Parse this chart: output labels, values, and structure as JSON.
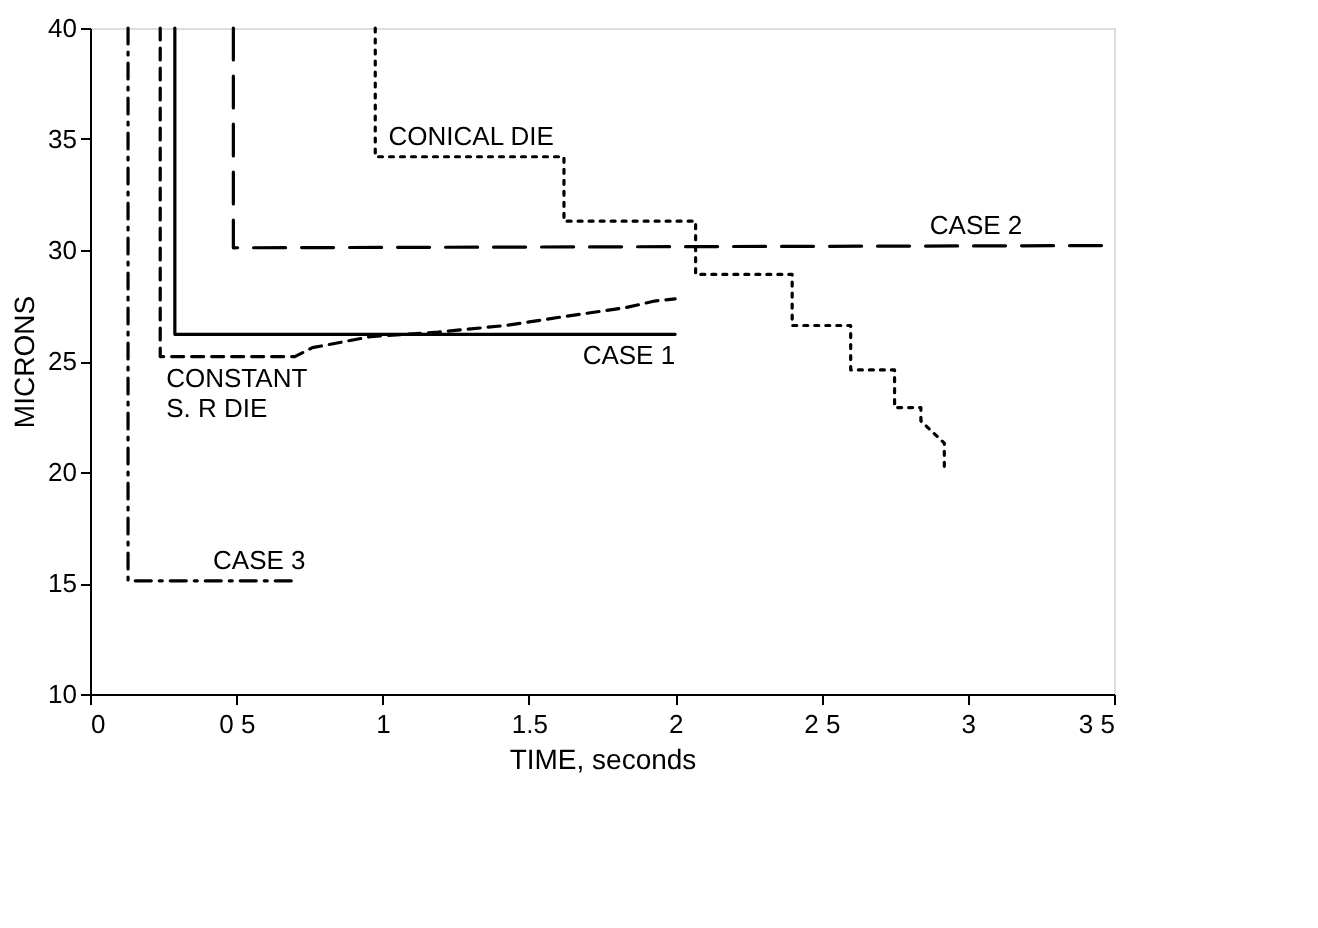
{
  "chart_data": {
    "type": "line",
    "xlabel": "TIME, seconds",
    "ylabel": "MICRONS",
    "xlim": [
      0,
      3.5
    ],
    "ylim": [
      10,
      40
    ],
    "xticks": [
      0,
      {
        "value": 0.5,
        "label": "0 5"
      },
      1,
      1.5,
      2,
      {
        "value": 2.5,
        "label": "2 5"
      },
      3,
      {
        "value": 3.5,
        "label": "3 5"
      }
    ],
    "yticks": [
      10,
      15,
      20,
      25,
      30,
      35,
      40
    ],
    "grid": false,
    "series": [
      {
        "color": "#000000",
        "line_style": "solid",
        "x": [
          0.29,
          0.29,
          2.0
        ],
        "values": [
          40,
          26.2,
          26.2
        ]
      },
      {
        "color": "#000000",
        "line_style": "longdash",
        "x": [
          0.49,
          0.49,
          3.5
        ],
        "values": [
          40,
          30.1,
          30.2
        ]
      },
      {
        "color": "#000000",
        "line_style": "dashed",
        "x": [
          0.24,
          0.24,
          0.7,
          0.76,
          0.96,
          1.19,
          1.42,
          1.62,
          1.83,
          1.93,
          2.0
        ],
        "values": [
          40,
          25.2,
          25.2,
          25.6,
          26.1,
          26.3,
          26.6,
          27.0,
          27.4,
          27.7,
          27.8
        ]
      },
      {
        "color": "#000000",
        "line_style": "dashdot",
        "x": [
          0.13,
          0.13,
          0.7
        ],
        "values": [
          40,
          15.1,
          15.1
        ]
      },
      {
        "color": "#000000",
        "line_style": "dotted",
        "x": [
          0.975,
          0.975,
          1.62,
          1.62,
          2.07,
          2.07,
          2.4,
          2.4,
          2.6,
          2.6,
          2.75,
          2.75,
          2.84,
          2.84,
          2.92,
          2.92
        ],
        "values": [
          40,
          34.2,
          34.2,
          31.3,
          31.3,
          28.9,
          28.9,
          26.6,
          26.6,
          24.6,
          24.6,
          22.9,
          22.9,
          22.3,
          21.3,
          20.0
        ]
      }
    ],
    "annotations": [
      {
        "text": "CONICAL DIE",
        "x": 1.0,
        "y": 34.2
      },
      {
        "text": "CASE 2",
        "x": 2.85,
        "y": 30.2
      },
      {
        "text": "CASE 1",
        "x": 2.0,
        "y": 26.2
      },
      {
        "text": "CONSTANT",
        "x": 0.24,
        "y": 25.2
      },
      {
        "text": "S. R  DIE",
        "x": 0.24,
        "y": 25.2
      },
      {
        "text": "CASE 3",
        "x": 0.4,
        "y": 15.1
      }
    ]
  }
}
